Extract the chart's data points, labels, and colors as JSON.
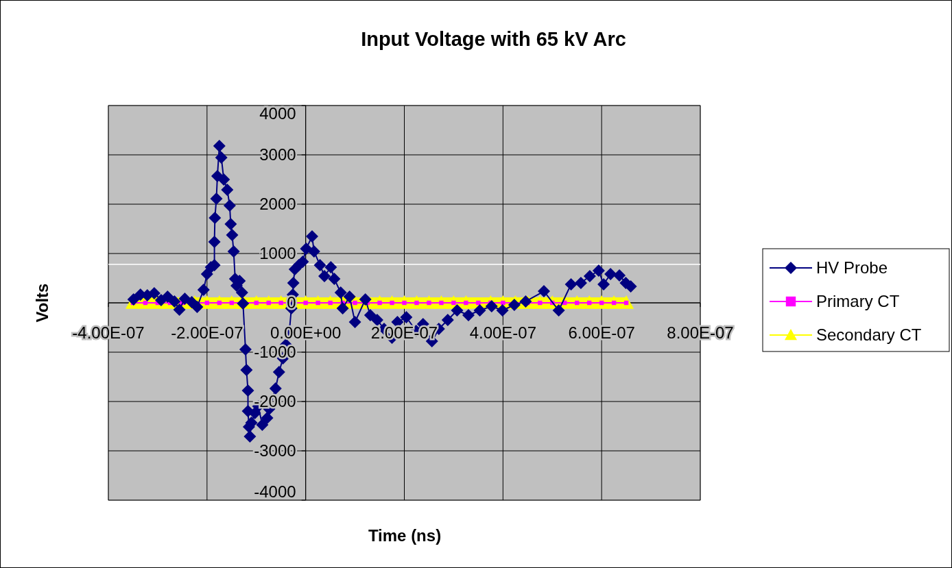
{
  "chart_data": {
    "type": "line",
    "title": "Input Voltage with 65 kV Arc",
    "xlabel": "Time (ns)",
    "ylabel": "Volts",
    "xlim": [
      -4e-07,
      8e-07
    ],
    "xticks": [
      {
        "value": -4e-07,
        "label": "-4.00E-07"
      },
      {
        "value": -2e-07,
        "label": "-2.00E-07"
      },
      {
        "value": 0,
        "label": "0.00E+00"
      },
      {
        "value": 2e-07,
        "label": "2.00E-07"
      },
      {
        "value": 4e-07,
        "label": "4.00E-07"
      },
      {
        "value": 6e-07,
        "label": "6.00E-07"
      },
      {
        "value": 8e-07,
        "label": "8.00E-07"
      }
    ],
    "ylim": [
      -4000,
      4000
    ],
    "yticks": [
      -4000,
      -3000,
      -2000,
      -1000,
      0,
      1000,
      2000,
      3000,
      4000
    ],
    "grid": true,
    "legend": "right",
    "line_style": "solid",
    "ref_lines": [
      {
        "axis": "y",
        "value": 780,
        "color": "#ffffff"
      }
    ],
    "x": [
      -3.49e-07,
      -3.35e-07,
      -3.21e-07,
      -3.07e-07,
      -2.93e-07,
      -2.8e-07,
      -2.66e-07,
      -2.56e-07,
      -2.45e-07,
      -2.31e-07,
      -2.2e-07,
      -2.07e-07,
      -2e-07,
      -1.92e-07,
      -1.85e-07,
      -1.85e-07,
      -1.84e-07,
      -1.81e-07,
      -1.79e-07,
      -1.75e-07,
      -1.71e-07,
      -1.66e-07,
      -1.59e-07,
      -1.54e-07,
      -1.52e-07,
      -1.49e-07,
      -1.46e-07,
      -1.43e-07,
      -1.4e-07,
      -1.34e-07,
      -1.29e-07,
      -1.27e-07,
      -1.22e-07,
      -1.2e-07,
      -1.17e-07,
      -1.17e-07,
      -1.15e-07,
      -1.13e-07,
      -1.1e-07,
      -1.03e-07,
      -9.6e-08,
      -8.8e-08,
      -7.8e-08,
      -7.4e-08,
      -6.1e-08,
      -5.4e-08,
      -4.6e-08,
      -4e-08,
      -3.3e-08,
      -2.9e-08,
      -2.6e-08,
      -2.5e-08,
      -2.2e-08,
      -1.4e-08,
      -6e-09,
      1e-09,
      1.3e-08,
      1.7e-08,
      2.9e-08,
      3.8e-08,
      5.1e-08,
      5.8e-08,
      7.1e-08,
      7.5e-08,
      8.9e-08,
      1e-07,
      1.21e-07,
      1.31e-07,
      1.45e-07,
      1.59e-07,
      1.75e-07,
      1.86e-07,
      2.04e-07,
      2.24e-07,
      2.38e-07,
      2.56e-07,
      2.7e-07,
      2.88e-07,
      3.07e-07,
      3.3e-07,
      3.53e-07,
      3.77e-07,
      3.99e-07,
      4.23e-07,
      4.46e-07,
      4.83e-07,
      5.13e-07,
      5.38e-07,
      5.58e-07,
      5.76e-07,
      5.94e-07,
      6.04e-07,
      6.18e-07,
      6.36e-07,
      6.49e-07,
      6.59e-07
    ],
    "series": [
      {
        "name": "HV Probe",
        "color": "#000080",
        "marker": "diamond",
        "values": [
          69,
          167,
          153,
          194,
          56,
          125,
          28,
          -139,
          83,
          14,
          -83,
          264,
          583,
          722,
          764,
          1236,
          1722,
          2111,
          2570,
          3181,
          2945,
          2500,
          2292,
          1972,
          1597,
          1375,
          1042,
          486,
          347,
          444,
          208,
          -14,
          -944,
          -1361,
          -1778,
          -2194,
          -2514,
          -2708,
          -2431,
          -2236,
          -2097,
          -2472,
          -2333,
          -2153,
          -1736,
          -1403,
          -1125,
          -847,
          -569,
          -111,
          167,
          403,
          681,
          764,
          833,
          1097,
          1347,
          1042,
          764,
          542,
          722,
          486,
          208,
          -111,
          125,
          -389,
          69,
          -250,
          -347,
          -528,
          -708,
          -389,
          -292,
          -569,
          -431,
          -778,
          -528,
          -347,
          -153,
          -250,
          -153,
          -69,
          -153,
          -42,
          28,
          236,
          -153,
          375,
          403,
          542,
          653,
          375,
          583,
          556,
          403,
          333
        ]
      },
      {
        "name": "Primary CT",
        "color": "#ff00ff",
        "marker": "square",
        "x": [
          -3.5e-07,
          -3.25e-07,
          -3e-07,
          -2.75e-07,
          -2.5e-07,
          -2.25e-07,
          -2e-07,
          -1.75e-07,
          -1.5e-07,
          -1.25e-07,
          -1e-07,
          -7.5e-08,
          -5e-08,
          -2.5e-08,
          0,
          2.5e-08,
          5e-08,
          7.5e-08,
          1e-07,
          1.25e-07,
          1.5e-07,
          1.75e-07,
          2e-07,
          2.25e-07,
          2.5e-07,
          2.75e-07,
          3e-07,
          3.25e-07,
          3.5e-07,
          3.75e-07,
          4e-07,
          4.25e-07,
          4.5e-07,
          4.75e-07,
          5e-07,
          5.25e-07,
          5.5e-07,
          5.75e-07,
          6e-07,
          6.25e-07,
          6.5e-07
        ],
        "values": [
          0,
          0,
          0,
          0,
          0,
          null,
          0,
          0,
          0,
          0,
          0,
          0,
          0,
          0,
          0,
          0,
          0,
          0,
          0,
          0,
          0,
          0,
          0,
          0,
          0,
          0,
          0,
          0,
          0,
          0,
          0,
          null,
          0,
          0,
          0,
          0,
          0,
          0,
          0,
          0,
          0
        ]
      },
      {
        "name": "Secondary CT",
        "color": "#ffff00",
        "marker": "triangle",
        "x": [
          -3.5e-07,
          -3.25e-07,
          -3e-07,
          -2.75e-07,
          -2.5e-07,
          -2.25e-07,
          -2e-07,
          -1.75e-07,
          -1.5e-07,
          -1.25e-07,
          -1e-07,
          -7.5e-08,
          -5e-08,
          -2.5e-08,
          0,
          2.5e-08,
          5e-08,
          7.5e-08,
          1e-07,
          1.25e-07,
          1.5e-07,
          1.75e-07,
          2e-07,
          2.25e-07,
          2.5e-07,
          2.75e-07,
          3e-07,
          3.25e-07,
          3.5e-07,
          3.75e-07,
          4e-07,
          4.25e-07,
          4.5e-07,
          4.75e-07,
          5e-07,
          5.25e-07,
          5.5e-07,
          5.75e-07,
          6e-07,
          6.25e-07,
          6.5e-07
        ],
        "values": [
          0,
          0,
          0,
          0,
          0,
          0,
          0,
          0,
          0,
          0,
          0,
          0,
          0,
          0,
          0,
          0,
          0,
          0,
          0,
          0,
          0,
          0,
          0,
          0,
          0,
          0,
          0,
          0,
          null,
          0,
          0,
          0,
          0,
          0,
          0,
          0,
          0,
          0,
          0,
          0,
          0
        ]
      }
    ]
  }
}
